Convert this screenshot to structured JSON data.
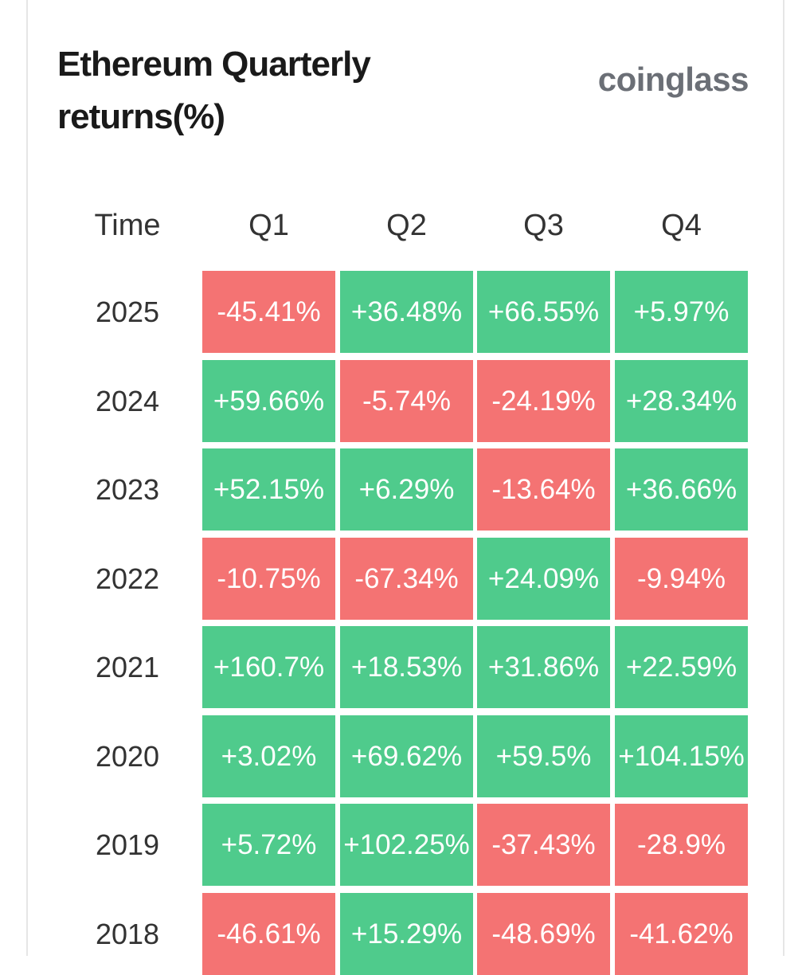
{
  "header": {
    "title": "Ethereum Quarterly returns(%)",
    "brand": "coinglass"
  },
  "table": {
    "columns": [
      "Time",
      "Q1",
      "Q2",
      "Q3",
      "Q4"
    ],
    "rows": [
      [
        "2025",
        "-45.41%",
        "+36.48%",
        "+66.55%",
        "+5.97%"
      ],
      [
        "2024",
        "+59.66%",
        "-5.74%",
        "-24.19%",
        "+28.34%"
      ],
      [
        "2023",
        "+52.15%",
        "+6.29%",
        "-13.64%",
        "+36.66%"
      ],
      [
        "2022",
        "-10.75%",
        "-67.34%",
        "+24.09%",
        "-9.94%"
      ],
      [
        "2021",
        "+160.7%",
        "+18.53%",
        "+31.86%",
        "+22.59%"
      ],
      [
        "2020",
        "+3.02%",
        "+69.62%",
        "+59.5%",
        "+104.15%"
      ],
      [
        "2019",
        "+5.72%",
        "+102.25%",
        "-37.43%",
        "-28.9%"
      ],
      [
        "2018",
        "-46.61%",
        "+15.29%",
        "-48.69%",
        "-41.62%"
      ]
    ]
  }
}
